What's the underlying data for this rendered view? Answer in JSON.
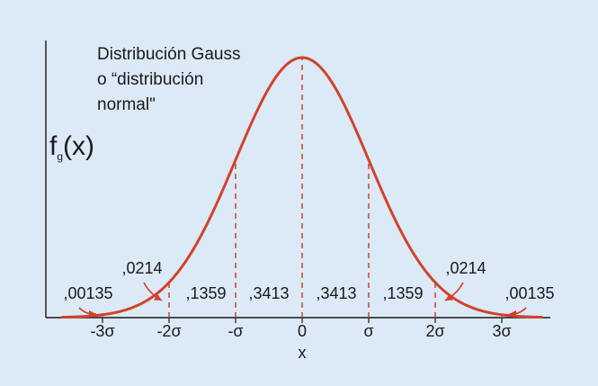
{
  "colors": {
    "background": "#dce9f6",
    "curve": "#d0432a",
    "axis": "#1a1a1a",
    "text": "#1a1a1a"
  },
  "title_lines": [
    "Distribución Gauss",
    "o  “distribución",
    "normal\""
  ],
  "y_label": {
    "main": "f",
    "subscript": "g",
    "suffix": "(x)"
  },
  "x_label": "x",
  "chart_data": {
    "type": "line",
    "function": "normal_pdf",
    "mean": 0,
    "sd": 1,
    "x_range": [
      -3.6,
      3.6
    ],
    "ticks": [
      {
        "x": -3,
        "label": "-3σ"
      },
      {
        "x": -2,
        "label": "-2σ"
      },
      {
        "x": -1,
        "label": "-σ"
      },
      {
        "x": 0,
        "label": "0"
      },
      {
        "x": 1,
        "label": "σ"
      },
      {
        "x": 2,
        "label": "2σ"
      },
      {
        "x": 3,
        "label": "3σ"
      }
    ],
    "dashed_lines_at": [
      -3,
      -2,
      -1,
      0,
      1,
      2,
      3
    ],
    "area_labels": [
      {
        "label": ",00135",
        "from": null,
        "to": -3
      },
      {
        "label": ",0214",
        "from": -3,
        "to": -2
      },
      {
        "label": ",1359",
        "from": -2,
        "to": -1
      },
      {
        "label": ",3413",
        "from": -1,
        "to": 0
      },
      {
        "label": ",3413",
        "from": 0,
        "to": 1
      },
      {
        "label": ",1359",
        "from": 1,
        "to": 2
      },
      {
        "label": ",0214",
        "from": 2,
        "to": 3
      },
      {
        "label": ",00135",
        "from": 3,
        "to": null
      }
    ]
  }
}
